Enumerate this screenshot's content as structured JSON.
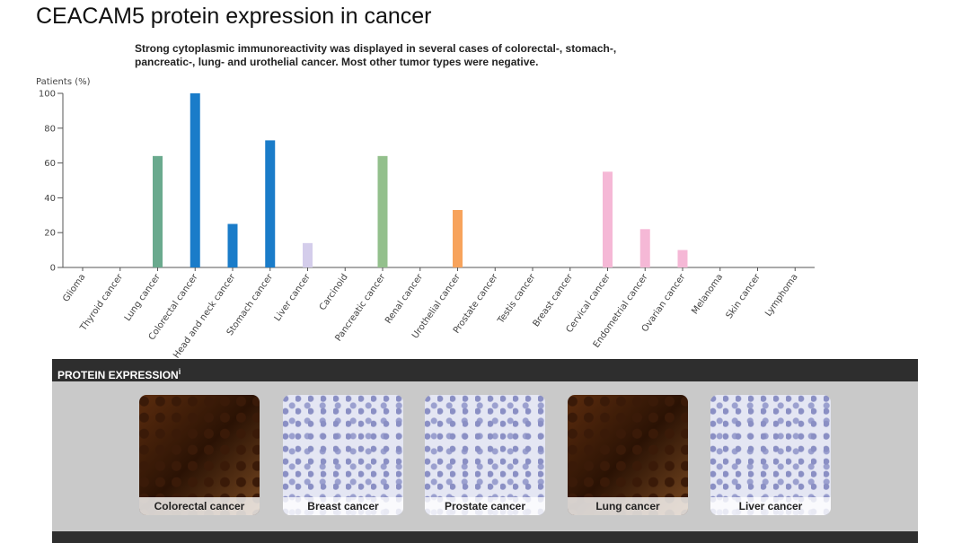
{
  "header": {
    "title": "CEACAM5 protein expression in cancer",
    "description": "Strong cytoplasmic immunoreactivity was displayed in several cases of colorectal-, stomach-, pancreatic-, lung- and urothelial cancer. Most other tumor types were negative."
  },
  "chart_data": {
    "type": "bar",
    "y_label": "Patients (%)",
    "categories": [
      "Glioma",
      "Thyroid cancer",
      "Lung cancer",
      "Colorectal cancer",
      "Head and neck cancer",
      "Stomach cancer",
      "Liver cancer",
      "Carcinoid",
      "Pancreatic cancer",
      "Renal cancer",
      "Urothelial cancer",
      "Prostate cancer",
      "Testis cancer",
      "Breast cancer",
      "Cervical cancer",
      "Endometrial cancer",
      "Ovarian cancer",
      "Melanoma",
      "Skin cancer",
      "Lymphoma"
    ],
    "values": [
      0,
      0,
      64,
      100,
      25,
      73,
      14,
      0,
      64,
      0,
      33,
      0,
      0,
      0,
      55,
      22,
      10,
      0,
      0,
      0
    ],
    "colors": [
      "#e6c84a",
      "#6aaa8e",
      "#6aaa8e",
      "#1a7cc9",
      "#1a7cc9",
      "#1a7cc9",
      "#d4cdeb",
      "#93c08c",
      "#93c08c",
      "#f7a35c",
      "#f7a35c",
      "#f7a35c",
      "#f7a35c",
      "#f5b8d6",
      "#f5b8d6",
      "#f5b8d6",
      "#f5b8d6",
      "#999999",
      "#999999",
      "#c47fb8"
    ],
    "ylim": [
      0,
      100
    ],
    "yticks": [
      0,
      20,
      40,
      60,
      80,
      100
    ]
  },
  "panel": {
    "title": "PROTEIN EXPRESSION",
    "info": "i",
    "images": [
      {
        "label": "Colorectal cancer"
      },
      {
        "label": "Breast cancer"
      },
      {
        "label": "Prostate cancer"
      },
      {
        "label": "Lung cancer"
      },
      {
        "label": "Liver cancer"
      }
    ]
  }
}
